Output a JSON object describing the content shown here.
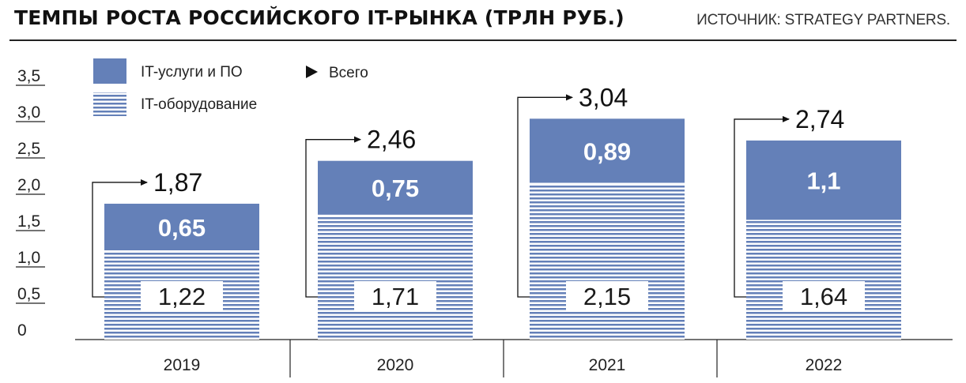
{
  "header": {
    "title": "ТЕМПЫ РОСТА РОССИЙСКОГО IT-РЫНКА (ТРЛН РУБ.)",
    "source": "ИСТОЧНИК: STRATEGY PARTNERS."
  },
  "colors": {
    "services": "#6480b8",
    "hardware_stripe": "#6480b8",
    "hardware_bg": "#ffffff",
    "text": "#1a1a1a"
  },
  "chart_data": {
    "type": "bar",
    "stacked": true,
    "title": "ТЕМПЫ РОСТА РОССИЙСКОГО IT-РЫНКА (ТРЛН РУБ.)",
    "categories": [
      "2019",
      "2020",
      "2021",
      "2022"
    ],
    "series": [
      {
        "name": "IT-оборудование",
        "values": [
          1.22,
          1.71,
          2.15,
          1.64
        ],
        "labels": [
          "1,22",
          "1,71",
          "2,15",
          "1,64"
        ],
        "pattern": "horizontal-stripes"
      },
      {
        "name": "IT-услуги и ПО",
        "values": [
          0.65,
          0.75,
          0.89,
          1.1
        ],
        "labels": [
          "0,65",
          "0,75",
          "0,89",
          "1,1"
        ],
        "pattern": "solid"
      }
    ],
    "totals": {
      "name": "Всего",
      "values": [
        1.87,
        2.46,
        3.04,
        2.74
      ],
      "labels": [
        "1,87",
        "2,46",
        "3,04",
        "2,74"
      ]
    },
    "ylim": [
      0,
      3.5
    ],
    "yticks": [
      0,
      0.5,
      1.0,
      1.5,
      2.0,
      2.5,
      3.0,
      3.5
    ],
    "ytick_labels": [
      "0",
      "0,5",
      "1,0",
      "1,5",
      "2,0",
      "2,5",
      "3,0",
      "3,5"
    ],
    "legend_position": "top-left",
    "grid": false
  }
}
